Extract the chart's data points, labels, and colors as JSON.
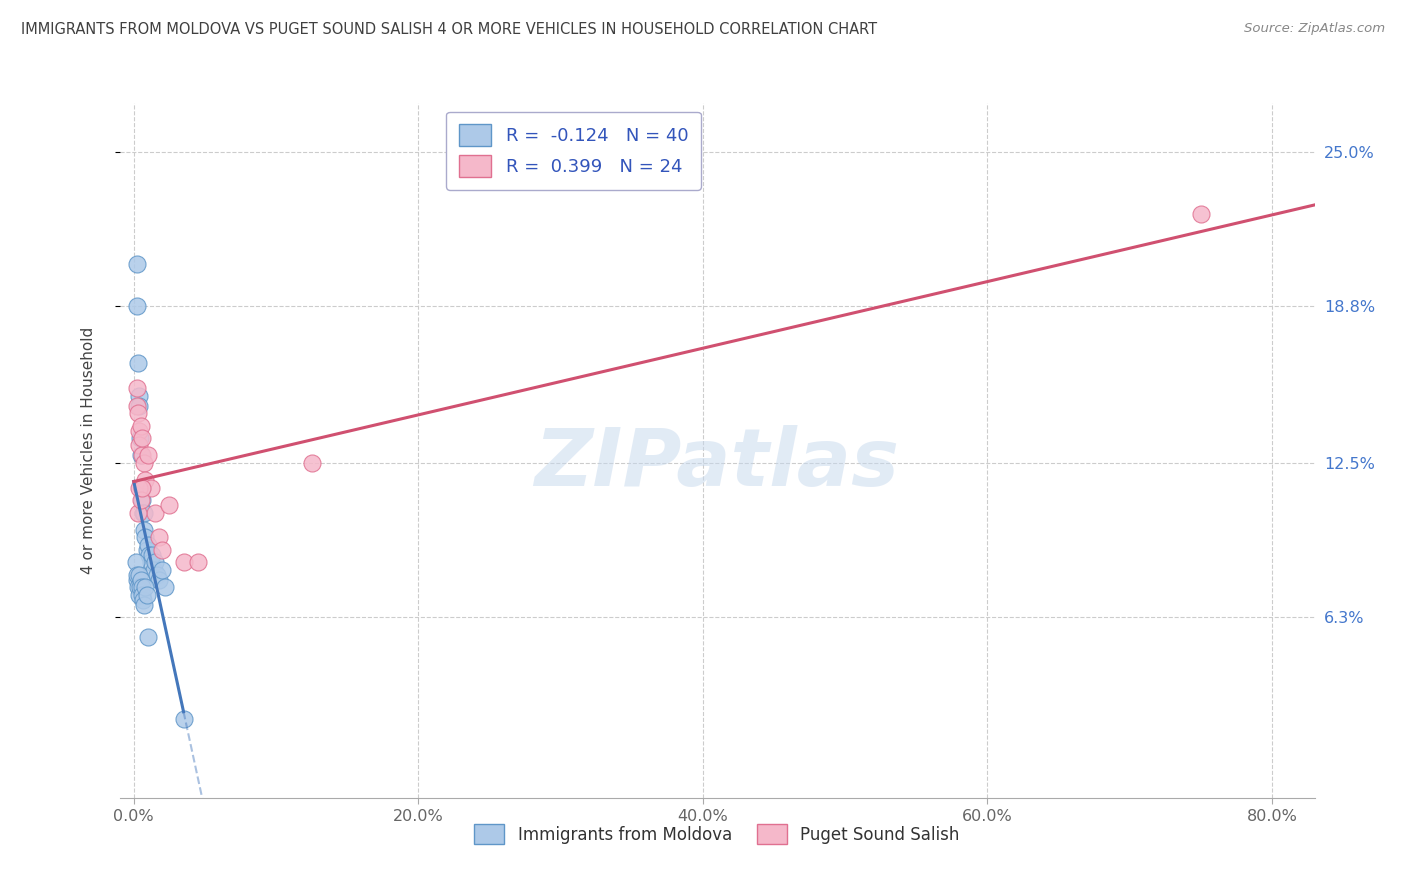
{
  "title": "IMMIGRANTS FROM MOLDOVA VS PUGET SOUND SALISH 4 OR MORE VEHICLES IN HOUSEHOLD CORRELATION CHART",
  "source": "Source: ZipAtlas.com",
  "ylabel": "4 or more Vehicles in Household",
  "xlabel_ticks": [
    "0.0%",
    "20.0%",
    "40.0%",
    "60.0%",
    "80.0%"
  ],
  "xlabel_vals": [
    0.0,
    20.0,
    40.0,
    60.0,
    80.0
  ],
  "ylabel_ticks": [
    "6.3%",
    "12.5%",
    "18.8%",
    "25.0%"
  ],
  "ylabel_vals": [
    6.3,
    12.5,
    18.8,
    25.0
  ],
  "xlim": [
    -1.0,
    83.0
  ],
  "ylim": [
    -1.0,
    27.0
  ],
  "series1_label": "Immigrants from Moldova",
  "series1_R": "-0.124",
  "series1_N": "40",
  "series1_color": "#adc9e8",
  "series1_edge_color": "#5f96c8",
  "series2_label": "Puget Sound Salish",
  "series2_R": "0.399",
  "series2_N": "24",
  "series2_color": "#f5b8ca",
  "series2_edge_color": "#e07090",
  "series1_line_color": "#4477bb",
  "series2_line_color": "#d05070",
  "watermark": "ZIPatlas",
  "bg_color": "#ffffff",
  "grid_color": "#cccccc",
  "title_color": "#404040",
  "axis_label_color": "#444444",
  "tick_label_color": "#666666",
  "right_tick_color": "#4477cc",
  "legend_text_color": "#3355bb",
  "blue_x": [
    0.2,
    0.25,
    0.3,
    0.35,
    0.4,
    0.45,
    0.5,
    0.55,
    0.6,
    0.65,
    0.7,
    0.75,
    0.8,
    0.9,
    1.0,
    1.1,
    1.2,
    1.3,
    1.4,
    1.5,
    1.6,
    1.8,
    2.0,
    2.2,
    0.15,
    0.2,
    0.25,
    0.3,
    0.35,
    0.4,
    0.45,
    0.5,
    0.55,
    0.6,
    0.65,
    0.7,
    0.8,
    0.9,
    1.0,
    3.5
  ],
  "blue_y": [
    20.5,
    18.8,
    16.5,
    15.2,
    14.8,
    13.5,
    12.8,
    11.5,
    11.0,
    10.5,
    10.5,
    9.8,
    9.5,
    9.0,
    9.2,
    8.8,
    8.5,
    8.8,
    8.2,
    8.5,
    8.0,
    7.8,
    8.2,
    7.5,
    8.5,
    7.8,
    8.0,
    7.5,
    7.2,
    8.0,
    7.5,
    7.8,
    7.5,
    7.2,
    7.0,
    6.8,
    7.5,
    7.2,
    5.5,
    2.2
  ],
  "pink_x": [
    0.2,
    0.25,
    0.3,
    0.35,
    0.4,
    0.5,
    0.55,
    0.6,
    0.7,
    0.8,
    1.0,
    1.2,
    1.5,
    1.8,
    2.5,
    3.5,
    0.3,
    0.4,
    0.5,
    0.6,
    2.0,
    4.5,
    12.5,
    75.0
  ],
  "pink_y": [
    14.8,
    15.5,
    14.5,
    13.8,
    13.2,
    14.0,
    12.8,
    13.5,
    12.5,
    11.8,
    12.8,
    11.5,
    10.5,
    9.5,
    10.8,
    8.5,
    10.5,
    11.5,
    11.0,
    11.5,
    9.0,
    8.5,
    12.5,
    22.5
  ]
}
